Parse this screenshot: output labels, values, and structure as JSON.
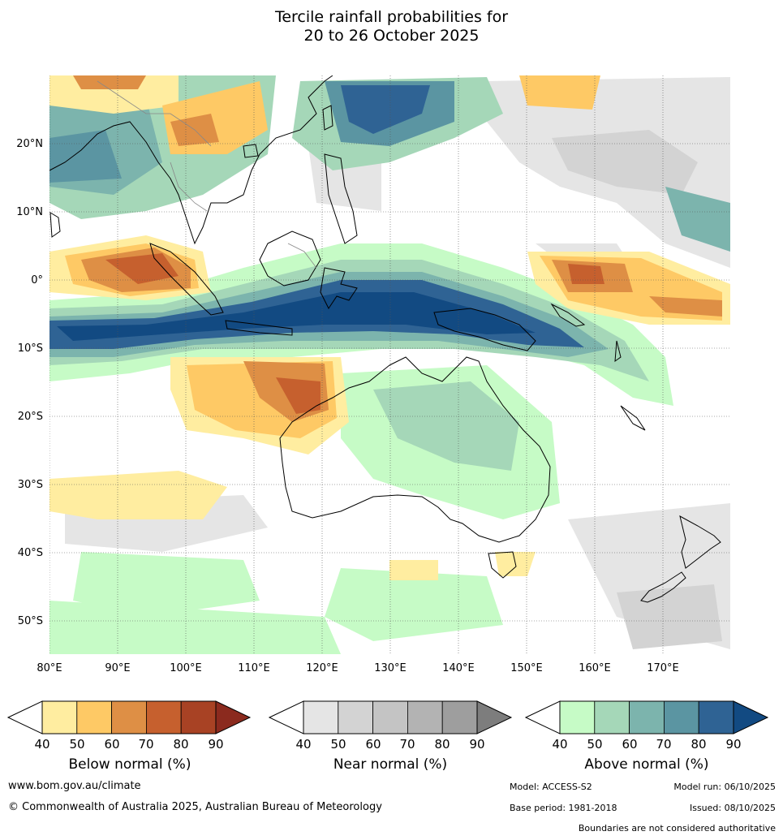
{
  "title": {
    "line1": "Tercile rainfall probabilities for",
    "line2": "20 to 26 October 2025"
  },
  "axes": {
    "lon_labels": [
      "80°E",
      "90°E",
      "100°E",
      "110°E",
      "120°E",
      "130°E",
      "140°E",
      "150°E",
      "160°E",
      "170°E"
    ],
    "lat_labels": [
      "20°N",
      "10°N",
      "0°",
      "10°S",
      "20°S",
      "30°S",
      "40°S",
      "50°S"
    ],
    "lon_range": [
      80,
      180
    ],
    "lat_range": [
      -55,
      30
    ]
  },
  "colorbars": [
    {
      "name": "below",
      "title": "Below normal (%)",
      "ticks": [
        "40",
        "50",
        "60",
        "70",
        "80",
        "90"
      ],
      "colors": [
        "#ffeda0",
        "#fec965",
        "#de8f45",
        "#c6602e",
        "#a84224",
        "#8b2a1e"
      ]
    },
    {
      "name": "near",
      "title": "Near normal (%)",
      "ticks": [
        "40",
        "50",
        "60",
        "70",
        "80",
        "90"
      ],
      "colors": [
        "#e5e5e5",
        "#d3d3d3",
        "#c4c4c4",
        "#b3b3b3",
        "#9e9e9e",
        "#7d7d7d"
      ]
    },
    {
      "name": "above",
      "title": "Above normal (%)",
      "ticks": [
        "40",
        "50",
        "60",
        "70",
        "80",
        "90"
      ],
      "colors": [
        "#c6fbc6",
        "#a5d7b8",
        "#7cb4ad",
        "#5b95a2",
        "#2f6394",
        "#124a82"
      ]
    }
  ],
  "map_colors": {
    "ocean": "#ffffff",
    "coast": "#000000",
    "border": "#888888"
  },
  "footer": {
    "url": "www.bom.gov.au/climate",
    "copyright": "© Commonwealth of Australia 2025, Australian Bureau of Meteorology",
    "model": "Model: ACCESS-S2",
    "model_run": "Model run: 06/10/2025",
    "base_period": "Base period: 1981-2018",
    "issued": "Issued: 08/10/2025",
    "boundaries": "Boundaries are not considered authoritative"
  }
}
